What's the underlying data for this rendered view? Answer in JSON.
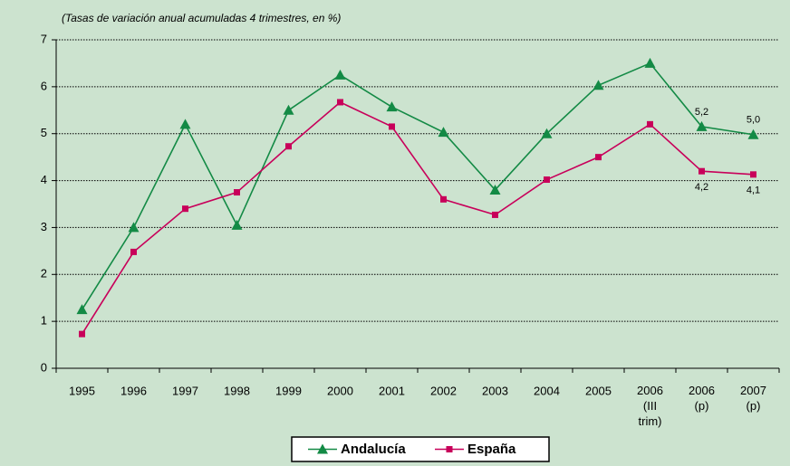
{
  "chart_data": {
    "type": "line",
    "subtitle": "(Tasas de variación anual acumuladas 4 trimestres, en %)",
    "categories": [
      "1995",
      "1996",
      "1997",
      "1998",
      "1999",
      "2000",
      "2001",
      "2002",
      "2003",
      "2004",
      "2005",
      [
        "2006",
        "(III",
        "trim)"
      ],
      [
        "2006",
        "(p)"
      ],
      [
        "2007",
        "(p)"
      ]
    ],
    "series": [
      {
        "name": "Andalucía",
        "color": "#138a45",
        "marker": "triangle",
        "values": [
          1.25,
          3.0,
          5.2,
          3.05,
          5.5,
          6.25,
          5.57,
          5.03,
          3.8,
          5.0,
          6.03,
          6.5,
          5.15,
          4.98
        ],
        "value_labels": [
          null,
          null,
          null,
          null,
          null,
          null,
          null,
          null,
          null,
          null,
          null,
          null,
          "5,2",
          "5,0"
        ]
      },
      {
        "name": "España",
        "color": "#c8005a",
        "marker": "square",
        "values": [
          0.73,
          2.48,
          3.4,
          3.75,
          4.73,
          5.67,
          5.15,
          3.6,
          3.27,
          4.02,
          4.5,
          5.2,
          4.2,
          4.13
        ],
        "value_labels": [
          null,
          null,
          null,
          null,
          null,
          null,
          null,
          null,
          null,
          null,
          null,
          null,
          "4,2",
          "4,1"
        ]
      }
    ],
    "ylim": [
      0,
      7
    ],
    "yticks": [
      0,
      1,
      2,
      3,
      4,
      5,
      6,
      7
    ],
    "grid": true,
    "legend": "bottom"
  }
}
